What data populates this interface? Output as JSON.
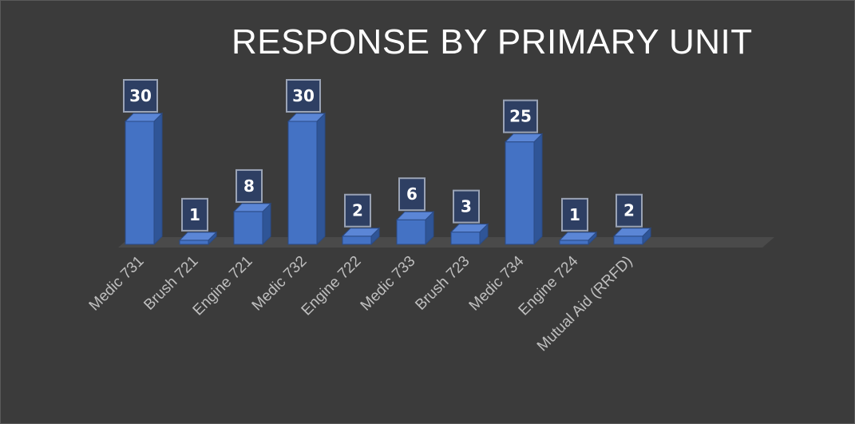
{
  "chart_data": {
    "type": "bar",
    "title": "RESPONSE BY PRIMARY UNIT",
    "categories": [
      "Medic 731",
      "Brush 721",
      "Engine 721",
      "Medic 732",
      "Engine 722",
      "Medic 733",
      "Brush 723",
      "Medic 734",
      "Engine 724",
      "Mutual Aid (RRFD)"
    ],
    "values": [
      30,
      1,
      8,
      30,
      2,
      6,
      3,
      25,
      1,
      2
    ],
    "xlabel": "",
    "ylabel": "",
    "ylim": [
      0,
      30
    ],
    "style": "3d-column",
    "grid": false,
    "legend": "none",
    "data_labels": true
  },
  "colors": {
    "background": "#3b3b3b",
    "bar_front": "#4472c4",
    "bar_side": "#2f5597",
    "bar_top": "#5b86d6",
    "label_box": "#2e3f63",
    "label_border": "#9aa3b5",
    "floor": "#4a4a4a"
  }
}
